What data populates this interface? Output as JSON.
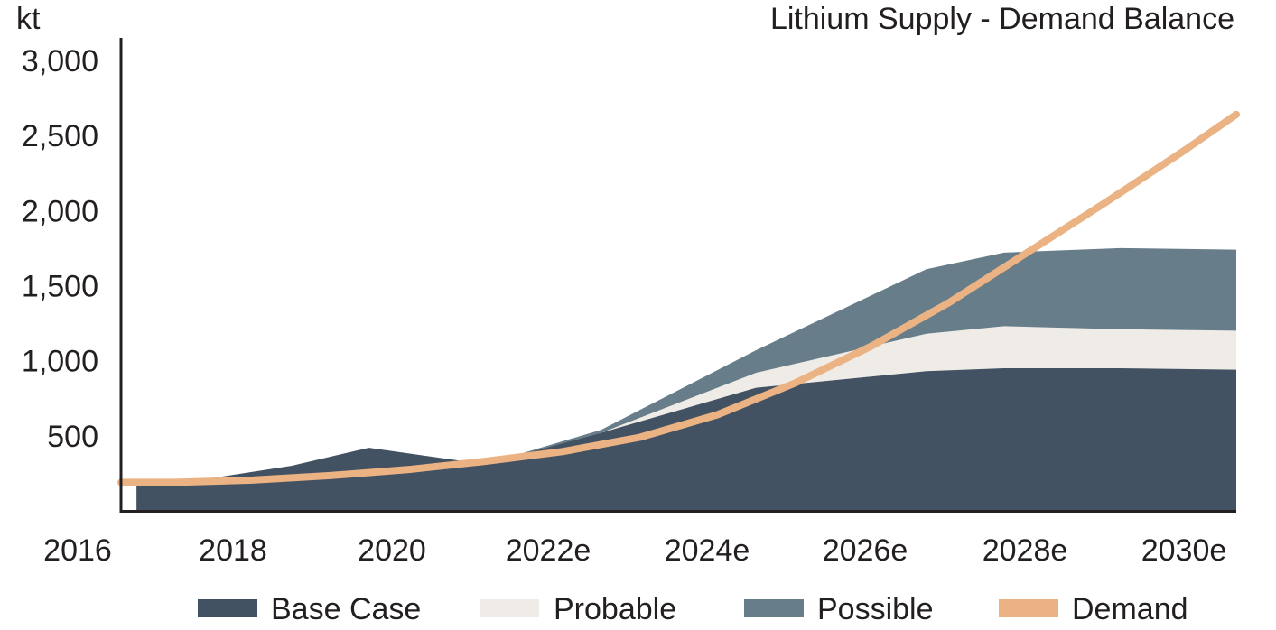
{
  "chart_data": {
    "type": "area",
    "title": "Lithium Supply - Demand Balance",
    "unit_label": "kt",
    "xlabel": "",
    "ylabel": "",
    "x_tick_labels": [
      "2016",
      "2018",
      "2020",
      "2022e",
      "2024e",
      "2026e",
      "2028e",
      "2030e"
    ],
    "y_tick_labels": [
      "500",
      "1,000",
      "1,500",
      "2,000",
      "2,500",
      "3,000"
    ],
    "y_ticks": [
      500,
      1000,
      1500,
      2000,
      2500,
      3000
    ],
    "ylim": [
      0,
      3150
    ],
    "xlim": [
      2016.3,
      2030.7
    ],
    "grid": false,
    "legend_position": "bottom",
    "x": [
      2016.5,
      2017.0,
      2018.5,
      2019.5,
      2021.0,
      2022.5,
      2024.5,
      2026.7,
      2027.7,
      2029.2,
      2030.7
    ],
    "series": [
      {
        "name": "Base Case",
        "kind": "area",
        "color": "#435263",
        "values": [
          180,
          180,
          300,
          420,
          310,
          520,
          820,
          930,
          950,
          950,
          940
        ]
      },
      {
        "name": "Probable",
        "kind": "area",
        "color": "#efece8",
        "values": [
          180,
          180,
          300,
          420,
          310,
          520,
          920,
          1180,
          1230,
          1210,
          1200
        ]
      },
      {
        "name": "Possible",
        "kind": "area",
        "color": "#677d89",
        "values": [
          180,
          180,
          300,
          420,
          310,
          540,
          1070,
          1610,
          1720,
          1750,
          1740
        ]
      },
      {
        "name": "Demand",
        "kind": "line",
        "color": "#ebb283",
        "x": [
          2016.3,
          2017.0,
          2018.0,
          2019.0,
          2020.0,
          2021.0,
          2022.0,
          2023.0,
          2024.0,
          2025.0,
          2026.0,
          2027.0,
          2028.0,
          2029.0,
          2030.0,
          2030.7
        ],
        "values": [
          190,
          190,
          205,
          235,
          275,
          330,
          395,
          490,
          640,
          850,
          1100,
          1390,
          1720,
          2050,
          2390,
          2640
        ]
      }
    ]
  }
}
